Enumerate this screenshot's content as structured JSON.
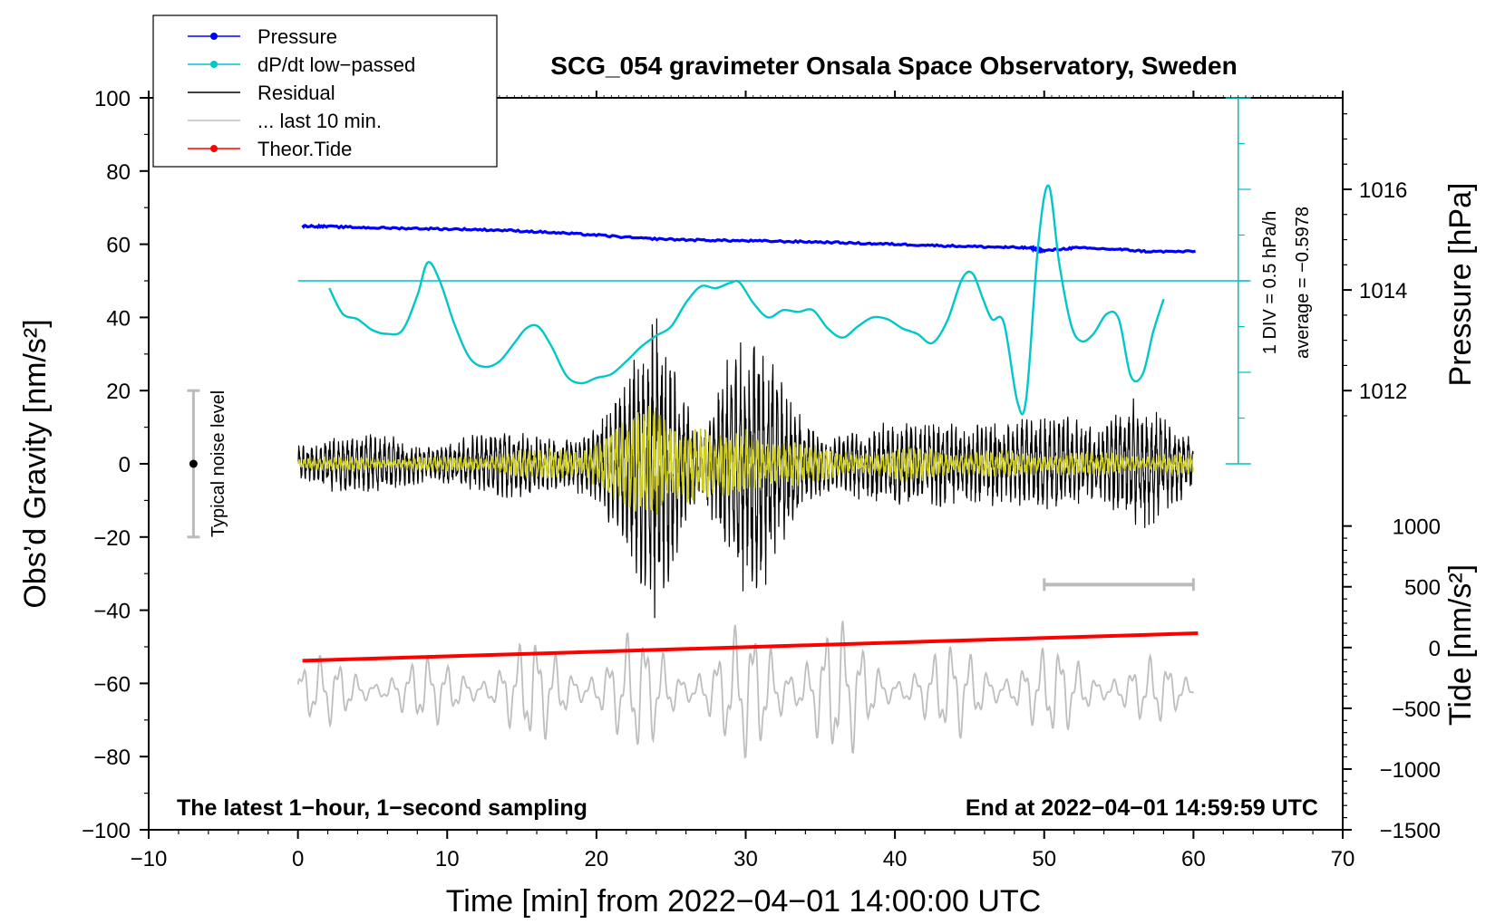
{
  "chart_data": {
    "type": "line",
    "title": "SCG_054 gravimeter Onsala Space Observatory, Sweden",
    "xlabel": "Time [min] from 2022−04−01 14:00:00 UTC",
    "ylabel_left": "Obs’d Gravity [nm/s²]",
    "ylabel_right_pressure": "Pressure [hPa]",
    "ylabel_right_tide": "Tide [nm/s²]",
    "xlim": [
      -10,
      70
    ],
    "ylim": [
      -100,
      100
    ],
    "x_ticks": [
      -10,
      0,
      10,
      20,
      30,
      40,
      50,
      60,
      70
    ],
    "x_tick_labels": [
      "−10",
      "0",
      "10",
      "20",
      "30",
      "40",
      "50",
      "60",
      "70"
    ],
    "y_ticks": [
      -100,
      -80,
      -60,
      -40,
      -20,
      0,
      20,
      40,
      60,
      80,
      100
    ],
    "y_tick_labels": [
      "−100",
      "−80",
      "−60",
      "−40",
      "−20",
      "0",
      "20",
      "40",
      "60",
      "80",
      "100"
    ],
    "pressure_axis": {
      "ticks": [
        1012,
        1014,
        1016
      ],
      "tick_labels": [
        "1012",
        "1014",
        "1016"
      ],
      "mapping": [
        [
          1012,
          20
        ],
        [
          1016,
          75
        ]
      ]
    },
    "tide_axis": {
      "ticks": [
        -1500,
        -1000,
        -500,
        0,
        500,
        1000
      ],
      "tick_labels": [
        "−1500",
        "−1000",
        "−500",
        "0",
        "500",
        "1000"
      ],
      "mapping": [
        [
          -1500,
          -100
        ],
        [
          1000,
          -17
        ]
      ]
    },
    "legend": [
      {
        "label": "Pressure",
        "color": "#0000ff",
        "marker": true
      },
      {
        "label": "dP/dt low−passed",
        "color": "#00c8c8",
        "marker": true
      },
      {
        "label": "Residual",
        "color": "#000000",
        "marker": false
      },
      {
        "label": "... last 10 min.",
        "color": "#bebebe",
        "marker": false
      },
      {
        "label": "Theor.Tide",
        "color": "#ff0000",
        "marker": true
      }
    ],
    "annotations": {
      "bottom_left": "The latest 1−hour, 1−second sampling",
      "bottom_right": "End at 2022−04−01 14:59:59 UTC",
      "dpdt_scale": "1 DIV = 0.5 hPa/h",
      "dpdt_average": "average = −0.5978",
      "noise_label": "Typical noise level"
    },
    "noise_bar": {
      "x": -7,
      "y_center": 0,
      "y_low": -20,
      "y_high": 20
    },
    "interval_bar": {
      "x_start": 50,
      "x_end": 60,
      "y": -33
    },
    "dpdt_scale_bar": {
      "x": 63,
      "y_bottom": 0,
      "y_top": 100,
      "baseline_y": 50,
      "div_minor": 4
    },
    "series": [
      {
        "name": "Pressure",
        "color": "#0000ff",
        "x": [
          0.3,
          2,
          5,
          8,
          11,
          14,
          17,
          20,
          23,
          26,
          29,
          32,
          35,
          38,
          41,
          44,
          47,
          49,
          50,
          52,
          55,
          57,
          60.3
        ],
        "y": [
          65,
          64.8,
          64.5,
          64.3,
          64.1,
          63.8,
          63.2,
          62.5,
          61.6,
          61.2,
          61.0,
          60.8,
          60.6,
          60.2,
          59.9,
          59.5,
          59.2,
          59.0,
          58.2,
          59.0,
          58.6,
          58.0,
          58.0
        ]
      },
      {
        "name": "dP/dt low-passed",
        "color": "#00c8c8",
        "x": [
          2.1,
          3,
          4,
          5,
          6,
          7,
          8,
          8.7,
          9.5,
          10.5,
          11.5,
          12.5,
          13.5,
          14.5,
          15.3,
          16.1,
          17,
          18,
          19,
          20,
          21,
          22,
          23,
          24,
          25,
          26,
          27,
          28,
          29,
          29.6,
          30.5,
          31.5,
          32.5,
          33.5,
          34.5,
          35.5,
          36.5,
          37.5,
          38.5,
          39.5,
          40.5,
          41.5,
          42.5,
          43.5,
          44.5,
          45.2,
          45.9,
          46.5,
          47.3,
          48.2,
          48.8,
          49.6,
          50.3,
          51,
          51.8,
          52.5,
          53.3,
          54.2,
          55,
          55.8,
          56.6,
          57.3,
          58
        ],
        "y": [
          48,
          41,
          39.5,
          36.5,
          35.5,
          36.5,
          46,
          55,
          50,
          38,
          29,
          26.5,
          28,
          33,
          37,
          37.5,
          32,
          24,
          22,
          23.5,
          24.5,
          28,
          32,
          35,
          37.5,
          44,
          48.5,
          48,
          49.5,
          49.5,
          44,
          40,
          42,
          41.5,
          42,
          37,
          34.5,
          37.5,
          40,
          39.5,
          37,
          35.5,
          33,
          39,
          50.5,
          52,
          45,
          39.5,
          38.5,
          17,
          18,
          60,
          76,
          55,
          38,
          33.5,
          35.5,
          41,
          39.5,
          24,
          24.5,
          36,
          45
        ]
      },
      {
        "name": "Theor.Tide",
        "color": "#ff0000",
        "x": [
          0.3,
          60.3
        ],
        "y": [
          -53.8,
          -46.3
        ]
      }
    ],
    "generated_series": [
      {
        "name": "Residual",
        "color": "#000000",
        "x_range": [
          0,
          60
        ],
        "baseline": 0,
        "envelope": [
          [
            0,
            9
          ],
          [
            10,
            8
          ],
          [
            16,
            10
          ],
          [
            20,
            14
          ],
          [
            22,
            25
          ],
          [
            24.2,
            48
          ],
          [
            25.5,
            30
          ],
          [
            27,
            15
          ],
          [
            29,
            38
          ],
          [
            30.5,
            40
          ],
          [
            32,
            28
          ],
          [
            34,
            14
          ],
          [
            38,
            12
          ],
          [
            42,
            13
          ],
          [
            45,
            18
          ],
          [
            48,
            12
          ],
          [
            50,
            14
          ],
          [
            53,
            16
          ],
          [
            56,
            22
          ],
          [
            58,
            14
          ],
          [
            60,
            9
          ]
        ]
      },
      {
        "name": "Residual filtered",
        "color": "#cfcf1a",
        "x_range": [
          0,
          60
        ],
        "baseline": 0,
        "envelope": [
          [
            0,
            2
          ],
          [
            10,
            2
          ],
          [
            18,
            5
          ],
          [
            22,
            12
          ],
          [
            24,
            20
          ],
          [
            26,
            15
          ],
          [
            28,
            8
          ],
          [
            30,
            12
          ],
          [
            33,
            7
          ],
          [
            36,
            4
          ],
          [
            42,
            5
          ],
          [
            45,
            4
          ],
          [
            60,
            3
          ]
        ]
      },
      {
        "name": "... last 10 min.",
        "color": "#bebebe",
        "x_range": [
          0,
          60
        ],
        "baseline": -62,
        "envelope": [
          [
            0,
            10
          ],
          [
            10,
            10
          ],
          [
            14,
            15
          ],
          [
            20,
            16
          ],
          [
            24,
            18
          ],
          [
            28,
            16
          ],
          [
            32,
            24
          ],
          [
            35,
            24
          ],
          [
            38,
            16
          ],
          [
            42,
            12
          ],
          [
            46,
            16
          ],
          [
            50,
            13
          ],
          [
            54,
            13
          ],
          [
            58,
            9
          ],
          [
            60,
            6
          ]
        ]
      }
    ]
  }
}
